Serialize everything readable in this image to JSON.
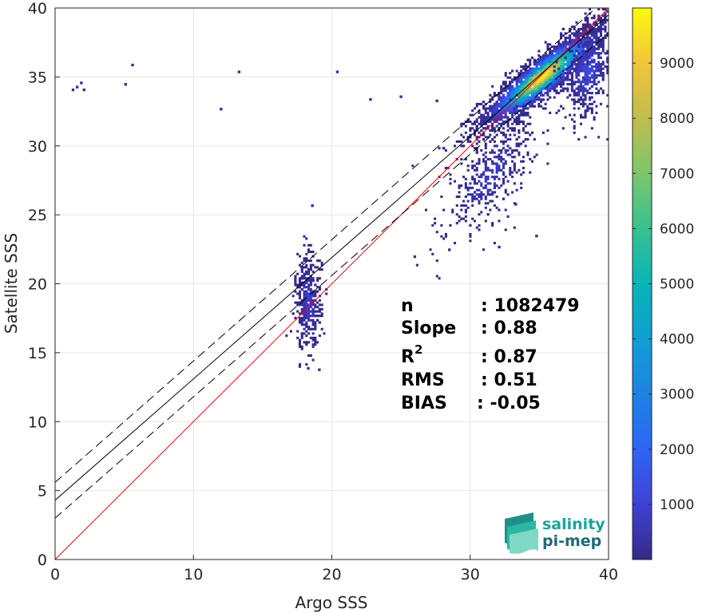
{
  "chart_data": {
    "type": "heatmap",
    "xlabel": "Argo SSS",
    "ylabel": "Satellite SSS",
    "xlim": [
      0,
      40
    ],
    "ylim": [
      0,
      40
    ],
    "x_ticks": [
      "0",
      "10",
      "20",
      "30",
      "40"
    ],
    "y_ticks": [
      "0",
      "5",
      "10",
      "15",
      "20",
      "25",
      "30",
      "35",
      "40"
    ],
    "grid": true,
    "colormap": "parula",
    "colorbar": {
      "min": 0,
      "max": 10000,
      "ticks": [
        "1000",
        "2000",
        "3000",
        "4000",
        "5000",
        "6000",
        "7000",
        "8000",
        "9000"
      ]
    },
    "lines": [
      {
        "name": "identity",
        "color": "#ff0000",
        "style": "solid",
        "slope": 1.0,
        "intercept": 0.0
      },
      {
        "name": "regression",
        "color": "#000000",
        "style": "solid",
        "slope": 0.88,
        "intercept": 4.3
      },
      {
        "name": "regression-upper",
        "color": "#000000",
        "style": "dashed",
        "slope": 0.88,
        "intercept": 5.6
      },
      {
        "name": "regression-lower",
        "color": "#000000",
        "style": "dashed",
        "slope": 0.88,
        "intercept": 3.0
      }
    ],
    "clusters": [
      {
        "name": "open-ocean",
        "x": 35.2,
        "y": 35.0,
        "sx": 2.3,
        "sy": 1.9,
        "rho": 0.9,
        "n": 2600,
        "peak": 9800
      },
      {
        "name": "high-salinity-spread",
        "x": 38.5,
        "y": 35.5,
        "sx": 0.9,
        "sy": 1.8,
        "rho": 0.3,
        "n": 500,
        "peak": 1200
      },
      {
        "name": "low-salinity-tail",
        "x": 31.5,
        "y": 28.0,
        "sx": 1.6,
        "sy": 2.2,
        "rho": 0.7,
        "n": 420,
        "peak": 700
      },
      {
        "name": "black-sea",
        "x": 18.3,
        "y": 18.7,
        "sx": 0.45,
        "sy": 1.7,
        "rho": 0.0,
        "n": 420,
        "peak": 900
      }
    ],
    "outliers": [
      [
        1.5,
        34.2
      ],
      [
        1.2,
        34.0
      ],
      [
        2.0,
        34.0
      ],
      [
        1.8,
        34.5
      ],
      [
        5.5,
        35.8
      ],
      [
        5.0,
        34.4
      ],
      [
        13.2,
        35.3
      ],
      [
        11.9,
        32.6
      ],
      [
        20.3,
        35.3
      ],
      [
        22.7,
        33.3
      ],
      [
        24.9,
        33.5
      ],
      [
        25.9,
        21.9
      ],
      [
        27.5,
        33.2
      ],
      [
        28.4,
        22.4
      ],
      [
        32.0,
        22.6
      ],
      [
        33.2,
        25.7
      ],
      [
        34.7,
        23.4
      ],
      [
        18.5,
        25.6
      ],
      [
        19.0,
        13.7
      ],
      [
        18.2,
        13.8
      ]
    ],
    "stats": [
      {
        "label": "n",
        "value": ": 1082479"
      },
      {
        "label": "Slope",
        "value": ": 0.88"
      },
      {
        "label": "R",
        "sup": "2",
        "value": ": 0.87"
      },
      {
        "label": "RMS",
        "value": ": 0.51"
      },
      {
        "label": "BIAS",
        "value": ": -0.05"
      }
    ]
  },
  "logo": {
    "line1": "salinity",
    "line2": "pi-mep"
  }
}
